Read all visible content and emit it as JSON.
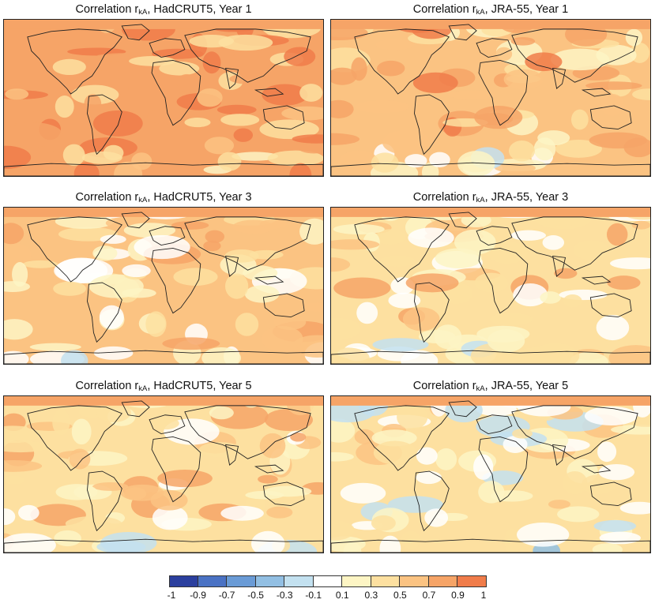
{
  "panels": [
    {
      "title_prefix": "Correlation r",
      "subscript": "kA",
      "title_suffix": ", HadCRUT5, Year 1",
      "base_level": 0.8
    },
    {
      "title_prefix": "Correlation r",
      "subscript": "kA",
      "title_suffix": ", JRA-55, Year 1",
      "base_level": 0.6
    },
    {
      "title_prefix": "Correlation r",
      "subscript": "kA",
      "title_suffix": ", HadCRUT5, Year 3",
      "base_level": 0.5
    },
    {
      "title_prefix": "Correlation r",
      "subscript": "kA",
      "title_suffix": ", JRA-55, Year 3",
      "base_level": 0.35
    },
    {
      "title_prefix": "Correlation r",
      "subscript": "kA",
      "title_suffix": ", HadCRUT5, Year 5",
      "base_level": 0.45
    },
    {
      "title_prefix": "Correlation r",
      "subscript": "kA",
      "title_suffix": ", JRA-55, Year 5",
      "base_level": 0.3
    }
  ],
  "colorbar": {
    "tick_labels": [
      "-1",
      "-0.9",
      "-0.7",
      "-0.5",
      "-0.3",
      "-0.1",
      "0.1",
      "0.3",
      "0.5",
      "0.7",
      "0.9",
      "1"
    ],
    "colors": [
      "#2b3f9e",
      "#4a72c4",
      "#6a9bd6",
      "#92bfe3",
      "#c3e1f0",
      "#ffffff",
      "#fdf5c4",
      "#fde0a0",
      "#fbc382",
      "#f6a467",
      "#f07c4a"
    ]
  },
  "colors": {
    "land_outline": "#222222",
    "frame": "#222222"
  }
}
